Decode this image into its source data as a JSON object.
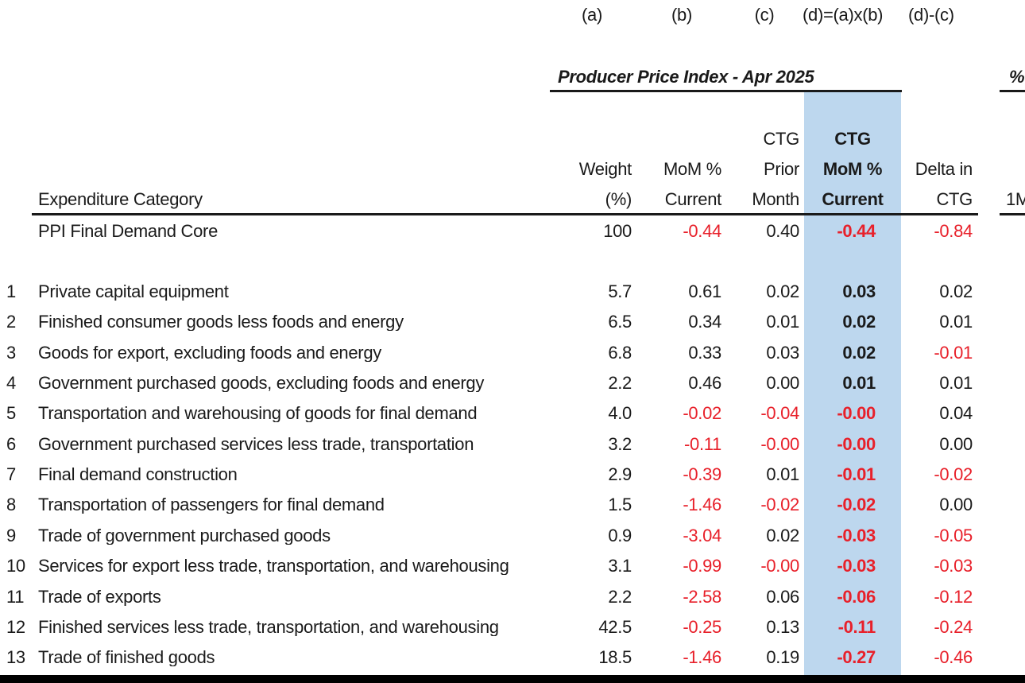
{
  "col_letters": [
    "(a)",
    "(b)",
    "(c)",
    "(d)=(a)x(b)",
    "(d)-(c)"
  ],
  "section_title": "Producer Price Index - Apr 2025",
  "next_section_fragment": "%",
  "next_header_fragment": "1M",
  "headers": {
    "category": "Expenditure Category",
    "weight": [
      "Weight",
      "(%)"
    ],
    "mom": [
      "MoM %",
      "Current"
    ],
    "ctg_prior": [
      "CTG",
      "Prior",
      "Month"
    ],
    "ctg_mom": [
      "CTG",
      "MoM %",
      "Current"
    ],
    "delta": [
      "Delta in",
      "CTG"
    ]
  },
  "summary": {
    "label": "PPI Final Demand Core",
    "weight": "100",
    "mom": "-0.44",
    "ctg_prior": "0.40",
    "ctg_mom": "-0.44",
    "delta": "-0.84"
  },
  "rows": [
    {
      "num": "1",
      "label": "Private capital equipment",
      "weight": "5.7",
      "mom": "0.61",
      "ctg_prior": "0.02",
      "ctg_mom": "0.03",
      "delta": "0.02"
    },
    {
      "num": "2",
      "label": "Finished consumer goods less foods and energy",
      "weight": "6.5",
      "mom": "0.34",
      "ctg_prior": "0.01",
      "ctg_mom": "0.02",
      "delta": "0.01"
    },
    {
      "num": "3",
      "label": "Goods for export, excluding foods and energy",
      "weight": "6.8",
      "mom": "0.33",
      "ctg_prior": "0.03",
      "ctg_mom": "0.02",
      "delta": "-0.01"
    },
    {
      "num": "4",
      "label": "Government purchased goods, excluding foods and energy",
      "weight": "2.2",
      "mom": "0.46",
      "ctg_prior": "0.00",
      "ctg_mom": "0.01",
      "delta": "0.01"
    },
    {
      "num": "5",
      "label": "Transportation and warehousing of goods for final demand",
      "weight": "4.0",
      "mom": "-0.02",
      "ctg_prior": "-0.04",
      "ctg_mom": "-0.00",
      "delta": "0.04"
    },
    {
      "num": "6",
      "label": "Government purchased services less trade, transportation",
      "weight": "3.2",
      "mom": "-0.11",
      "ctg_prior": "-0.00",
      "ctg_mom": "-0.00",
      "delta": "0.00"
    },
    {
      "num": "7",
      "label": "Final demand construction",
      "weight": "2.9",
      "mom": "-0.39",
      "ctg_prior": "0.01",
      "ctg_mom": "-0.01",
      "delta": "-0.02"
    },
    {
      "num": "8",
      "label": "Transportation of passengers for final demand",
      "weight": "1.5",
      "mom": "-1.46",
      "ctg_prior": "-0.02",
      "ctg_mom": "-0.02",
      "delta": "0.00"
    },
    {
      "num": "9",
      "label": "Trade of government purchased goods",
      "weight": "0.9",
      "mom": "-3.04",
      "ctg_prior": "0.02",
      "ctg_mom": "-0.03",
      "delta": "-0.05"
    },
    {
      "num": "10",
      "label": "Services for export less trade, transportation, and warehousing",
      "weight": "3.1",
      "mom": "-0.99",
      "ctg_prior": "-0.00",
      "ctg_mom": "-0.03",
      "delta": "-0.03"
    },
    {
      "num": "11",
      "label": "Trade of exports",
      "weight": "2.2",
      "mom": "-2.58",
      "ctg_prior": "0.06",
      "ctg_mom": "-0.06",
      "delta": "-0.12"
    },
    {
      "num": "12",
      "label": "Finished services less trade, transportation, and warehousing",
      "weight": "42.5",
      "mom": "-0.25",
      "ctg_prior": "0.13",
      "ctg_mom": "-0.11",
      "delta": "-0.24"
    },
    {
      "num": "13",
      "label": "Trade of finished goods",
      "weight": "18.5",
      "mom": "-1.46",
      "ctg_prior": "0.19",
      "ctg_mom": "-0.27",
      "delta": "-0.46"
    }
  ]
}
